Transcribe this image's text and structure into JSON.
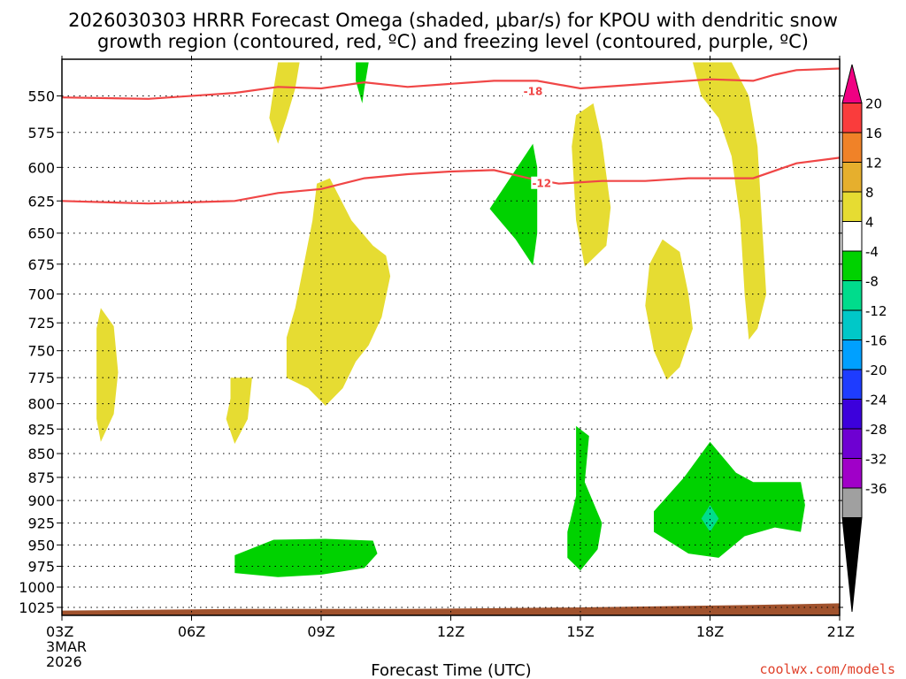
{
  "chart_data": {
    "type": "contour",
    "title_line1": "2026030303 HRRR Forecast Omega (shaded, μbar/s) for KPOU with dendritic snow",
    "title_line2": "growth region (contoured, red, ºC) and freezing level (contoured, purple, ºC)",
    "xlabel": "Forecast Time (UTC)",
    "credit": "coolwx.com/models",
    "x_ticks": [
      {
        "hour": 3,
        "label": "03Z",
        "sub1": "3MAR",
        "sub2": "2026"
      },
      {
        "hour": 6,
        "label": "06Z"
      },
      {
        "hour": 9,
        "label": "09Z"
      },
      {
        "hour": 12,
        "label": "12Z"
      },
      {
        "hour": 15,
        "label": "15Z"
      },
      {
        "hour": 18,
        "label": "18Z"
      },
      {
        "hour": 21,
        "label": "21Z"
      }
    ],
    "xlim": [
      3,
      21
    ],
    "ylim": [
      526,
      1035
    ],
    "y_ticks": [
      550,
      575,
      600,
      625,
      650,
      675,
      700,
      725,
      750,
      775,
      800,
      825,
      850,
      875,
      900,
      925,
      950,
      975,
      1000,
      1025
    ],
    "y_scale": "log-pressure",
    "grid": true,
    "colorbar": {
      "position": "right",
      "levels": [
        {
          "label": "",
          "color": "#000000"
        },
        {
          "label": "-36",
          "color": "#a0a0a0"
        },
        {
          "label": "-32",
          "color": "#a000c8"
        },
        {
          "label": "-28",
          "color": "#6e00d2"
        },
        {
          "label": "-24",
          "color": "#3c00dc"
        },
        {
          "label": "-20",
          "color": "#1e3cff"
        },
        {
          "label": "-16",
          "color": "#00a0ff"
        },
        {
          "label": "-12",
          "color": "#00c8c8"
        },
        {
          "label": "-8",
          "color": "#00dc8c"
        },
        {
          "label": "-4",
          "color": "#00d200"
        },
        {
          "label": "4",
          "color": "#ffffff"
        },
        {
          "label": "8",
          "color": "#e6dc32"
        },
        {
          "label": "12",
          "color": "#e6af2d"
        },
        {
          "label": "16",
          "color": "#f08228"
        },
        {
          "label": "20",
          "color": "#fa3c3c"
        },
        {
          "label": "",
          "color": "#f00082"
        }
      ]
    },
    "contours": [
      {
        "label": "-18",
        "color": "#f04646",
        "label_at": [
          13.7,
          547
        ],
        "points": [
          [
            3,
            551
          ],
          [
            5,
            552
          ],
          [
            7,
            548
          ],
          [
            8,
            544
          ],
          [
            9,
            545
          ],
          [
            10,
            541
          ],
          [
            11,
            544
          ],
          [
            12,
            542
          ],
          [
            13,
            540
          ],
          [
            14,
            540
          ],
          [
            15,
            545
          ],
          [
            16,
            543
          ],
          [
            17,
            541
          ],
          [
            18,
            539
          ],
          [
            19,
            540
          ],
          [
            19.5,
            536
          ],
          [
            20,
            533
          ],
          [
            21,
            532
          ]
        ]
      },
      {
        "label": "-12",
        "color": "#f04646",
        "label_at": [
          13.9,
          612
        ],
        "points": [
          [
            3,
            625
          ],
          [
            5,
            627
          ],
          [
            7,
            625
          ],
          [
            8,
            619
          ],
          [
            9,
            616
          ],
          [
            10,
            608
          ],
          [
            11,
            605
          ],
          [
            12,
            603
          ],
          [
            13,
            602
          ],
          [
            13.8,
            608
          ],
          [
            14.5,
            612
          ],
          [
            15.5,
            610
          ],
          [
            16.5,
            610
          ],
          [
            17.5,
            608
          ],
          [
            18.5,
            608
          ],
          [
            19,
            608
          ],
          [
            20,
            597
          ],
          [
            21,
            593
          ]
        ]
      }
    ],
    "omega_regions": [
      {
        "value_range": "4 to 8",
        "color": "#e6dc32",
        "points": [
          [
            8,
            528
          ],
          [
            8.5,
            528
          ],
          [
            8.4,
            545
          ],
          [
            8.2,
            565
          ],
          [
            8,
            583
          ],
          [
            7.8,
            565
          ],
          [
            7.9,
            545
          ]
        ]
      },
      {
        "value_range": "4 to 8",
        "color": "#e6dc32",
        "points": [
          [
            8.9,
            612
          ],
          [
            9.2,
            608
          ],
          [
            9.7,
            640
          ],
          [
            10.2,
            660
          ],
          [
            10.5,
            668
          ],
          [
            10.6,
            685
          ],
          [
            10.4,
            720
          ],
          [
            10.1,
            745
          ],
          [
            9.8,
            760
          ],
          [
            9.5,
            785
          ],
          [
            9.1,
            802
          ],
          [
            8.7,
            785
          ],
          [
            8.2,
            775
          ],
          [
            8.2,
            738
          ],
          [
            8.4,
            712
          ],
          [
            8.6,
            675
          ],
          [
            8.8,
            640
          ]
        ]
      },
      {
        "value_range": "4 to 8",
        "color": "#e6dc32",
        "points": [
          [
            3.9,
            712
          ],
          [
            4.2,
            728
          ],
          [
            4.3,
            770
          ],
          [
            4.2,
            810
          ],
          [
            3.9,
            838
          ],
          [
            3.8,
            815
          ],
          [
            3.8,
            760
          ],
          [
            3.8,
            730
          ]
        ]
      },
      {
        "value_range": "4 to 8",
        "color": "#e6dc32",
        "points": [
          [
            6.9,
            775
          ],
          [
            7.4,
            775
          ],
          [
            7.3,
            815
          ],
          [
            7.0,
            840
          ],
          [
            6.8,
            815
          ],
          [
            6.9,
            795
          ]
        ]
      },
      {
        "value_range": "4 to 8",
        "color": "#e6dc32",
        "points": [
          [
            14.9,
            563
          ],
          [
            15.3,
            555
          ],
          [
            15.5,
            582
          ],
          [
            15.7,
            630
          ],
          [
            15.6,
            660
          ],
          [
            15.1,
            677
          ],
          [
            14.9,
            640
          ],
          [
            14.8,
            585
          ]
        ]
      },
      {
        "value_range": "4 to 8",
        "color": "#e6dc32",
        "points": [
          [
            16.9,
            655
          ],
          [
            17.3,
            665
          ],
          [
            17.5,
            700
          ],
          [
            17.6,
            730
          ],
          [
            17.3,
            765
          ],
          [
            17.0,
            777
          ],
          [
            16.7,
            750
          ],
          [
            16.5,
            710
          ],
          [
            16.6,
            675
          ]
        ]
      },
      {
        "value_range": "4 to 8",
        "color": "#e6dc32",
        "points": [
          [
            17.6,
            528
          ],
          [
            18.5,
            528
          ],
          [
            18.9,
            550
          ],
          [
            19.1,
            585
          ],
          [
            19.2,
            640
          ],
          [
            19.3,
            700
          ],
          [
            19.1,
            730
          ],
          [
            18.9,
            740
          ],
          [
            18.8,
            700
          ],
          [
            18.7,
            640
          ],
          [
            18.5,
            592
          ],
          [
            18.2,
            565
          ],
          [
            17.8,
            550
          ]
        ]
      },
      {
        "value_range": "-8 to -4",
        "color": "#00d200",
        "points": [
          [
            9.8,
            528
          ],
          [
            10.1,
            528
          ],
          [
            10.0,
            545
          ],
          [
            9.95,
            555
          ],
          [
            9.8,
            540
          ]
        ]
      },
      {
        "value_range": "-8 to -4",
        "color": "#00d200",
        "points": [
          [
            12.9,
            631
          ],
          [
            13.9,
            583
          ],
          [
            14.0,
            600
          ],
          [
            14.0,
            650
          ],
          [
            13.9,
            676
          ],
          [
            13.5,
            655
          ]
        ]
      },
      {
        "value_range": "-8 to -4",
        "color": "#00d200",
        "points": [
          [
            7.0,
            962
          ],
          [
            7.9,
            944
          ],
          [
            9.1,
            943
          ],
          [
            10.2,
            945
          ],
          [
            10.3,
            960
          ],
          [
            10.0,
            977
          ],
          [
            9.0,
            985
          ],
          [
            8.0,
            988
          ],
          [
            7.0,
            983
          ]
        ]
      },
      {
        "value_range": "-8 to -4",
        "color": "#00d200",
        "points": [
          [
            14.9,
            822
          ],
          [
            15.2,
            832
          ],
          [
            15.1,
            880
          ],
          [
            15.5,
            925
          ],
          [
            15.4,
            955
          ],
          [
            15.0,
            980
          ],
          [
            14.7,
            965
          ],
          [
            14.7,
            935
          ],
          [
            14.9,
            895
          ],
          [
            14.9,
            850
          ]
        ]
      },
      {
        "value_range": "-8 to -4",
        "color": "#00d200",
        "points": [
          [
            16.7,
            912
          ],
          [
            17.4,
            875
          ],
          [
            18.0,
            838
          ],
          [
            18.6,
            870
          ],
          [
            19.0,
            880
          ],
          [
            20.1,
            880
          ],
          [
            20.2,
            905
          ],
          [
            20.1,
            935
          ],
          [
            19.5,
            930
          ],
          [
            18.8,
            940
          ],
          [
            18.2,
            965
          ],
          [
            17.5,
            960
          ],
          [
            16.7,
            935
          ]
        ]
      },
      {
        "value_range": "-12 to -8",
        "color": "#00dc8c",
        "points": [
          [
            18.0,
            905
          ],
          [
            18.2,
            920
          ],
          [
            18.0,
            935
          ],
          [
            17.8,
            920
          ]
        ]
      }
    ],
    "terrain_color": "#a0522d",
    "terrain_top": [
      [
        3,
        1029
      ],
      [
        7,
        1027
      ],
      [
        11,
        1027
      ],
      [
        15,
        1025
      ],
      [
        19,
        1022
      ],
      [
        21,
        1020
      ]
    ]
  }
}
